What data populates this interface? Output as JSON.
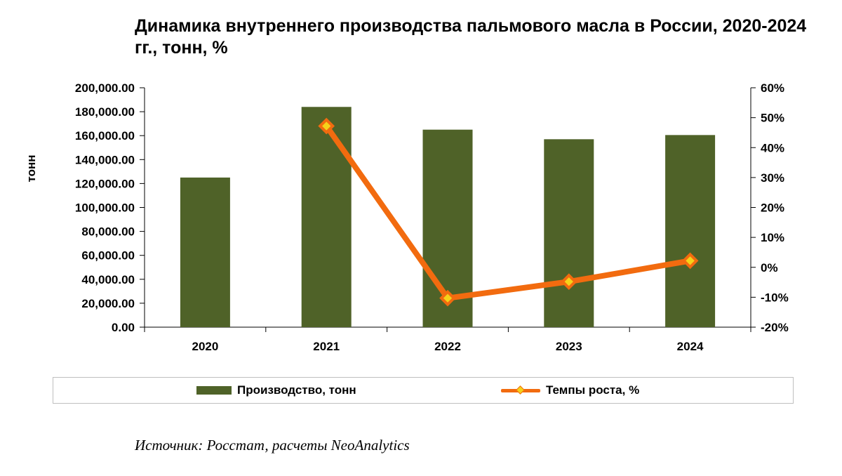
{
  "title": "Динамика внутреннего производства пальмового масла в России, 2020-2024 гг., тонн, %",
  "source": "Источник: Росстат, расчеты NeoAnalytics",
  "colors": {
    "bar": "#4f6228",
    "line": "#f26b0f",
    "marker_fill": "#f5d21a"
  },
  "chart_data": {
    "type": "bar",
    "categories": [
      "2020",
      "2021",
      "2022",
      "2023",
      "2024"
    ],
    "ylabel": "тонн",
    "xlabel": "",
    "ylim": [
      0,
      200000
    ],
    "y_ticks": [
      "0.00",
      "20,000.00",
      "40,000.00",
      "60,000.00",
      "80,000.00",
      "100,000.00",
      "120,000.00",
      "140,000.00",
      "160,000.00",
      "180,000.00",
      "200,000.00"
    ],
    "y2lim": [
      -20,
      60
    ],
    "y2_ticks": [
      "-20%",
      "-10%",
      "0%",
      "10%",
      "20%",
      "30%",
      "40%",
      "50%",
      "60%"
    ],
    "grid": false,
    "legend_position": "bottom",
    "series": [
      {
        "name": "Производство, тонн",
        "type": "bar",
        "axis": "left",
        "values": [
          125000,
          184000,
          165000,
          157000,
          160500
        ]
      },
      {
        "name": "Темпы роста, %",
        "type": "line",
        "axis": "right",
        "values": [
          null,
          47.2,
          -10.3,
          -4.8,
          2.2
        ]
      }
    ]
  }
}
